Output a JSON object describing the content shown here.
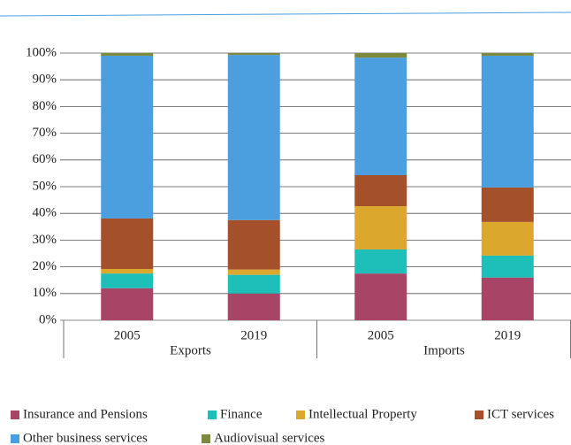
{
  "chart_data": {
    "type": "stacked-bar",
    "categories": [
      "2005",
      "2019",
      "2005",
      "2019"
    ],
    "groups": [
      {
        "name": "Exports",
        "size": 2
      },
      {
        "name": "Imports",
        "size": 2
      }
    ],
    "series": [
      {
        "name": "Insurance and Pensions",
        "color": "#a84466",
        "values": [
          12,
          10,
          17.5,
          16
        ]
      },
      {
        "name": "Finance",
        "color": "#1dbfb8",
        "values": [
          5.5,
          7,
          9,
          8.2
        ]
      },
      {
        "name": "Intellectual Property",
        "color": "#dba72c",
        "values": [
          1.7,
          2,
          16.2,
          12.6
        ]
      },
      {
        "name": "ICT services",
        "color": "#a4502a",
        "values": [
          18.9,
          18.5,
          11.6,
          12.9
        ]
      },
      {
        "name": "Other business services",
        "color": "#4b9fdf",
        "values": [
          60.9,
          61.8,
          44,
          49.3
        ]
      },
      {
        "name": "Audiovisual services",
        "color": "#7d8a3d",
        "values": [
          1,
          0.7,
          1.7,
          1
        ]
      }
    ],
    "ylim": [
      0,
      100
    ],
    "yticks": [
      {
        "value": 0,
        "label": "0%"
      },
      {
        "value": 10,
        "label": "10%"
      },
      {
        "value": 20,
        "label": "20%"
      },
      {
        "value": 30,
        "label": "30%"
      },
      {
        "value": 40,
        "label": "40%"
      },
      {
        "value": 50,
        "label": "50%"
      },
      {
        "value": 60,
        "label": "60%"
      },
      {
        "value": 70,
        "label": "70%"
      },
      {
        "value": 80,
        "label": "80%"
      },
      {
        "value": 90,
        "label": "90%"
      },
      {
        "value": 100,
        "label": "100%"
      }
    ],
    "grid": true
  }
}
